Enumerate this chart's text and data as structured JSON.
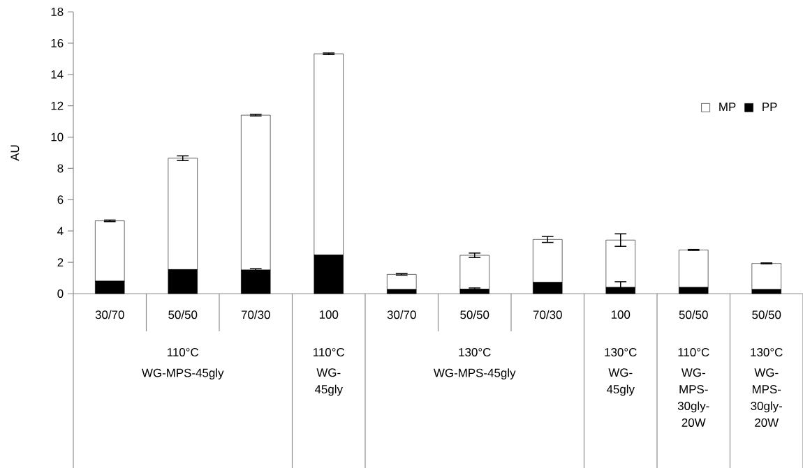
{
  "chart_data": {
    "type": "bar",
    "stacked": true,
    "ylabel": "AU",
    "categories": [
      "30/70",
      "50/50",
      "70/30",
      "100",
      "30/70",
      "50/50",
      "70/30",
      "100",
      "50/50",
      "50/50"
    ],
    "series": [
      {
        "name": "PP",
        "color": "#000000",
        "values": [
          0.8,
          1.54,
          1.51,
          2.47,
          0.27,
          0.29,
          0.72,
          0.4,
          0.4,
          0.27
        ],
        "errors": [
          null,
          null,
          0.08,
          null,
          null,
          0.07,
          null,
          0.36,
          null,
          null
        ]
      },
      {
        "name": "MP",
        "color": "#ffffff",
        "values": [
          3.85,
          7.11,
          9.89,
          12.85,
          0.96,
          2.16,
          2.74,
          3.02,
          2.39,
          1.66
        ],
        "errors": [
          0.05,
          0.15,
          0.05,
          0.05,
          0.05,
          0.14,
          0.19,
          0.4,
          0.03,
          0.03
        ]
      }
    ],
    "ylim": [
      0,
      18
    ],
    "yticks": [
      0,
      2,
      4,
      6,
      8,
      10,
      12,
      14,
      16,
      18
    ],
    "legend": "right",
    "annotations": [
      "110°C",
      "110°C",
      "130°C",
      "130°C",
      "110°C",
      "130°C",
      "WG-MPS-45gly",
      "WG-45gly",
      "WG-MPS-45gly",
      "WG-45gly",
      "WG-MPS-30gly-20W",
      "WG-MPS-30gly-20W"
    ]
  }
}
